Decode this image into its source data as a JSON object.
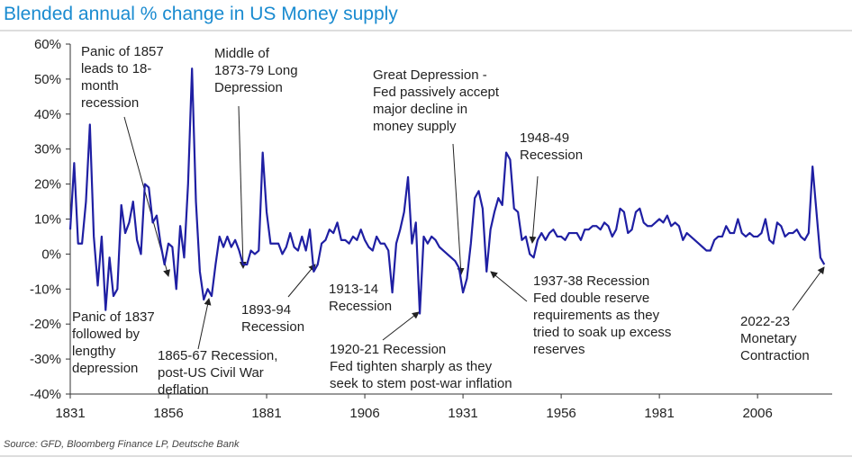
{
  "chart_data": {
    "type": "line",
    "title": "Blended annual % change in US Money supply",
    "source": "Source: GFD, Bloomberg Finance LP, Deutsche Bank",
    "xlim": [
      1831,
      2025
    ],
    "xticks": [
      1831,
      1856,
      1881,
      1906,
      1931,
      1956,
      1981,
      2006
    ],
    "ylim": [
      -40,
      60
    ],
    "yticks": [
      {
        "value": -40,
        "label": "-40%"
      },
      {
        "value": -30,
        "label": "-30%"
      },
      {
        "value": -20,
        "label": "-20%"
      },
      {
        "value": -10,
        "label": "-10%"
      },
      {
        "value": 0,
        "label": "0%"
      },
      {
        "value": 10,
        "label": "10%"
      },
      {
        "value": 20,
        "label": "20%"
      },
      {
        "value": 30,
        "label": "30%"
      },
      {
        "value": 40,
        "label": "40%"
      },
      {
        "value": 50,
        "label": "50%"
      },
      {
        "value": 60,
        "label": "60%"
      }
    ],
    "grid": false,
    "x": [
      1831,
      1832,
      1833,
      1834,
      1835,
      1836,
      1837,
      1838,
      1839,
      1840,
      1841,
      1842,
      1843,
      1844,
      1845,
      1846,
      1847,
      1848,
      1849,
      1850,
      1851,
      1852,
      1853,
      1854,
      1855,
      1856,
      1857,
      1858,
      1859,
      1860,
      1861,
      1862,
      1863,
      1864,
      1865,
      1866,
      1867,
      1868,
      1869,
      1870,
      1871,
      1872,
      1873,
      1874,
      1875,
      1876,
      1877,
      1878,
      1879,
      1880,
      1881,
      1882,
      1883,
      1884,
      1885,
      1886,
      1887,
      1888,
      1889,
      1890,
      1891,
      1892,
      1893,
      1894,
      1895,
      1896,
      1897,
      1898,
      1899,
      1900,
      1901,
      1902,
      1903,
      1904,
      1905,
      1906,
      1907,
      1908,
      1909,
      1910,
      1911,
      1912,
      1913,
      1914,
      1915,
      1916,
      1917,
      1918,
      1919,
      1920,
      1921,
      1922,
      1923,
      1924,
      1925,
      1926,
      1927,
      1928,
      1929,
      1930,
      1931,
      1932,
      1933,
      1934,
      1935,
      1936,
      1937,
      1938,
      1939,
      1940,
      1941,
      1942,
      1943,
      1944,
      1945,
      1946,
      1947,
      1948,
      1949,
      1950,
      1951,
      1952,
      1953,
      1954,
      1955,
      1956,
      1957,
      1958,
      1959,
      1960,
      1961,
      1962,
      1963,
      1964,
      1965,
      1966,
      1967,
      1968,
      1969,
      1970,
      1971,
      1972,
      1973,
      1974,
      1975,
      1976,
      1977,
      1978,
      1979,
      1980,
      1981,
      1982,
      1983,
      1984,
      1985,
      1986,
      1987,
      1988,
      1989,
      1990,
      1991,
      1992,
      1993,
      1994,
      1995,
      1996,
      1997,
      1998,
      1999,
      2000,
      2001,
      2002,
      2003,
      2004,
      2005,
      2006,
      2007,
      2008,
      2009,
      2010,
      2011,
      2012,
      2013,
      2014,
      2015,
      2016,
      2017,
      2018,
      2019,
      2020,
      2021,
      2022,
      2023
    ],
    "series": [
      {
        "color": "#1f1fa3",
        "values": [
          7,
          26,
          3,
          3,
          15,
          37,
          5,
          -9,
          5,
          -16,
          -1,
          -12,
          -10,
          14,
          6,
          9,
          15,
          4,
          0,
          20,
          19,
          9,
          11,
          3,
          -3,
          3,
          2,
          -10,
          8,
          -1,
          20,
          53,
          15,
          -5,
          -13,
          -10,
          -12,
          -3,
          5,
          2,
          5,
          2,
          4,
          1,
          -3,
          -3,
          1,
          0,
          1,
          29,
          12,
          3,
          3,
          3,
          0,
          2,
          6,
          2,
          1,
          5,
          1,
          7,
          -5,
          -3,
          3,
          4,
          7,
          6,
          9,
          4,
          4,
          3,
          5,
          4,
          7,
          4,
          2,
          1,
          5,
          3,
          3,
          1,
          -11,
          3,
          7,
          12,
          22,
          3,
          9,
          -17,
          5,
          3,
          5,
          4,
          2,
          1,
          0,
          -1,
          -2,
          -4,
          -11,
          -7,
          3,
          16,
          18,
          13,
          -5,
          7,
          12,
          16,
          14,
          29,
          27,
          13,
          12,
          4,
          5,
          0,
          -1,
          4,
          6,
          4,
          6,
          7,
          5,
          5,
          4,
          6,
          6,
          6,
          4,
          7,
          7,
          8,
          8,
          7,
          9,
          8,
          5,
          7,
          13,
          12,
          6,
          7,
          12,
          13,
          9,
          8,
          8,
          9,
          10,
          9,
          11,
          8,
          9,
          8,
          4,
          6,
          5,
          4,
          3,
          2,
          1,
          1,
          4,
          5,
          5,
          8,
          6,
          6,
          10,
          6,
          5,
          6,
          5,
          5,
          6,
          10,
          4,
          3,
          9,
          8,
          5,
          6,
          6,
          7,
          5,
          4,
          6,
          25,
          12,
          -1,
          -3
        ]
      }
    ],
    "annotations": [
      {
        "lines": [
          "Panic of 1857",
          "leads to 18-",
          "month",
          "recession"
        ]
      },
      {
        "lines": [
          "Middle of",
          "1873-79 Long",
          "Depression"
        ]
      },
      {
        "lines": [
          "Great Depression -",
          "Fed passively accept",
          "major decline in",
          "money supply"
        ]
      },
      {
        "lines": [
          "1948-49",
          "Recession"
        ]
      },
      {
        "lines": [
          "1937-38 Recession",
          "Fed double reserve",
          "requirements as they",
          "tried to soak up excess",
          "reserves"
        ]
      },
      {
        "lines": [
          "2022-23",
          "Monetary",
          "Contraction"
        ]
      },
      {
        "lines": [
          "Panic of 1837",
          "followed by",
          "lengthy",
          "depression"
        ]
      },
      {
        "lines": [
          "1865-67 Recession,",
          "post-US Civil War",
          "deflation"
        ]
      },
      {
        "lines": [
          "1893-94",
          "Recession"
        ]
      },
      {
        "lines": [
          "1913-14",
          "Recession"
        ]
      },
      {
        "lines": [
          "1920-21 Recession",
          "Fed tighten sharply as they",
          "seek to stem post-war inflation"
        ]
      }
    ]
  }
}
